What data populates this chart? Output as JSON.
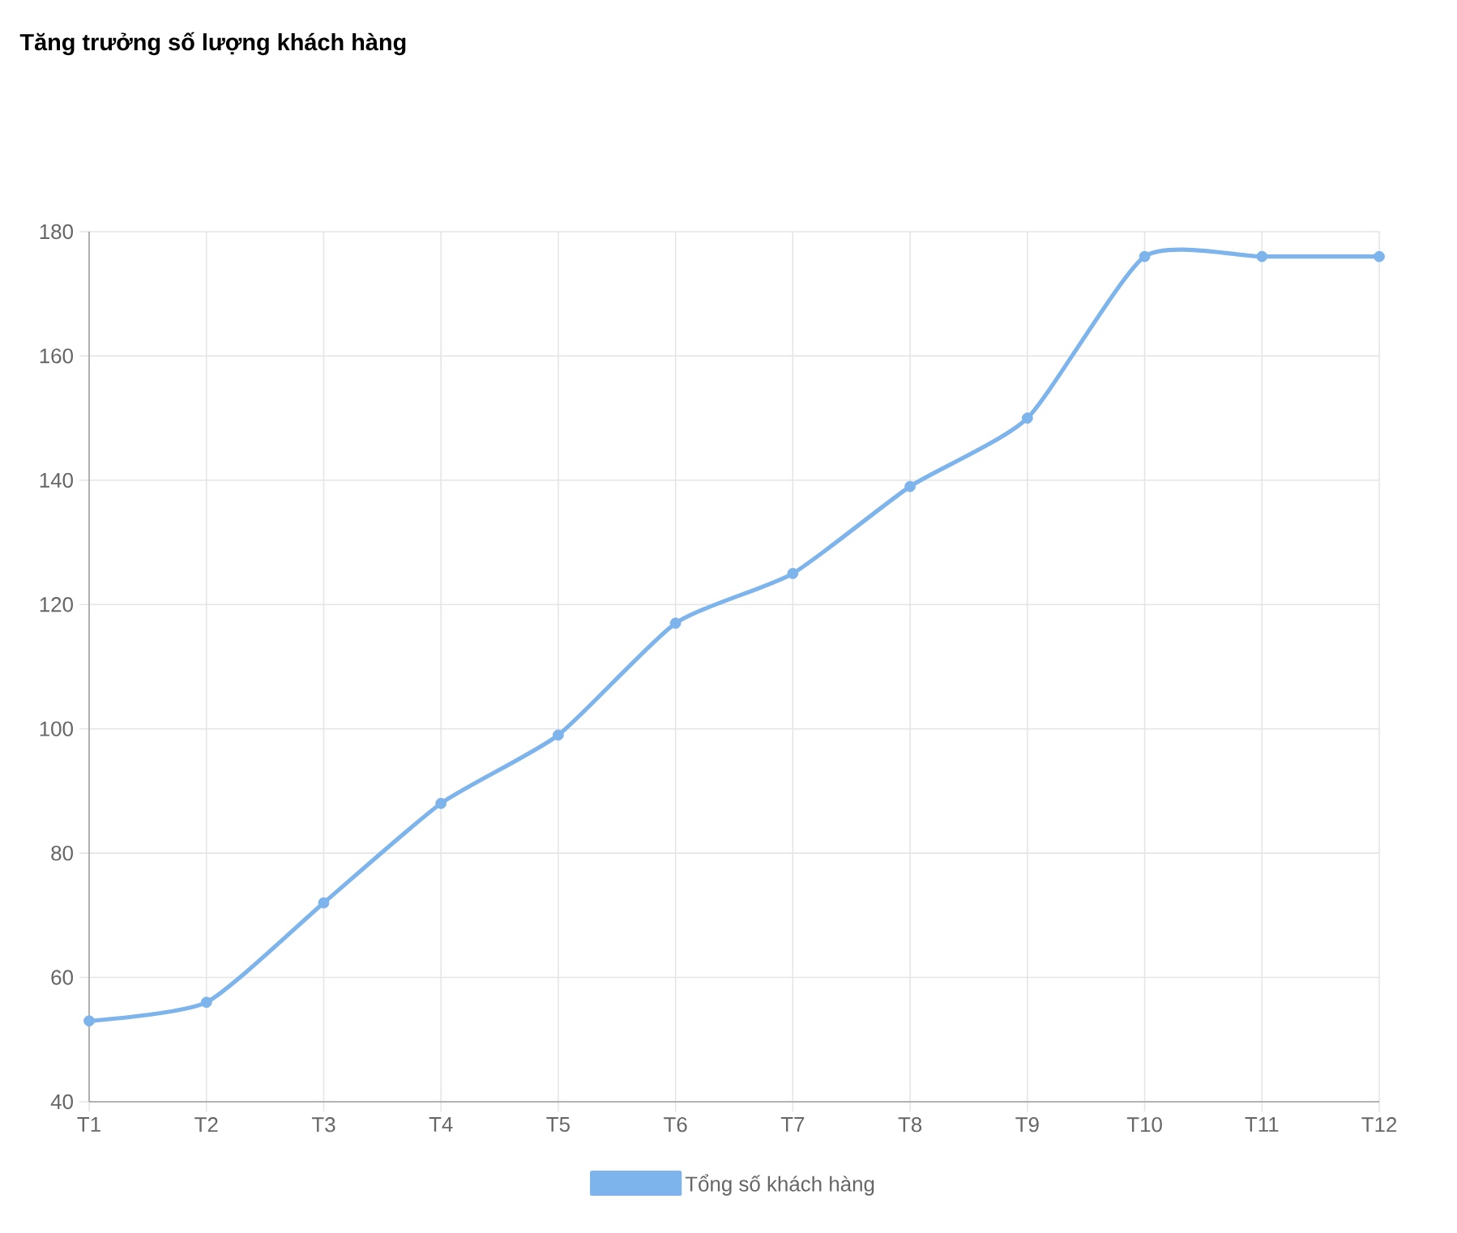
{
  "chart_data": {
    "type": "line",
    "title": "Tăng trưởng số lượng khách hàng",
    "categories": [
      "T1",
      "T2",
      "T3",
      "T4",
      "T5",
      "T6",
      "T7",
      "T8",
      "T9",
      "T10",
      "T11",
      "T12"
    ],
    "series": [
      {
        "name": "Tổng số khách hàng",
        "color": "#7db4ec",
        "values": [
          53,
          56,
          72,
          88,
          99,
          117,
          125,
          139,
          150,
          176,
          176,
          176
        ]
      }
    ],
    "ylim": [
      40,
      180
    ],
    "yticks": [
      40,
      60,
      80,
      100,
      120,
      140,
      160,
      180
    ],
    "grid": true,
    "legend": "bottom",
    "marker": "circle",
    "line_style": "solid"
  }
}
